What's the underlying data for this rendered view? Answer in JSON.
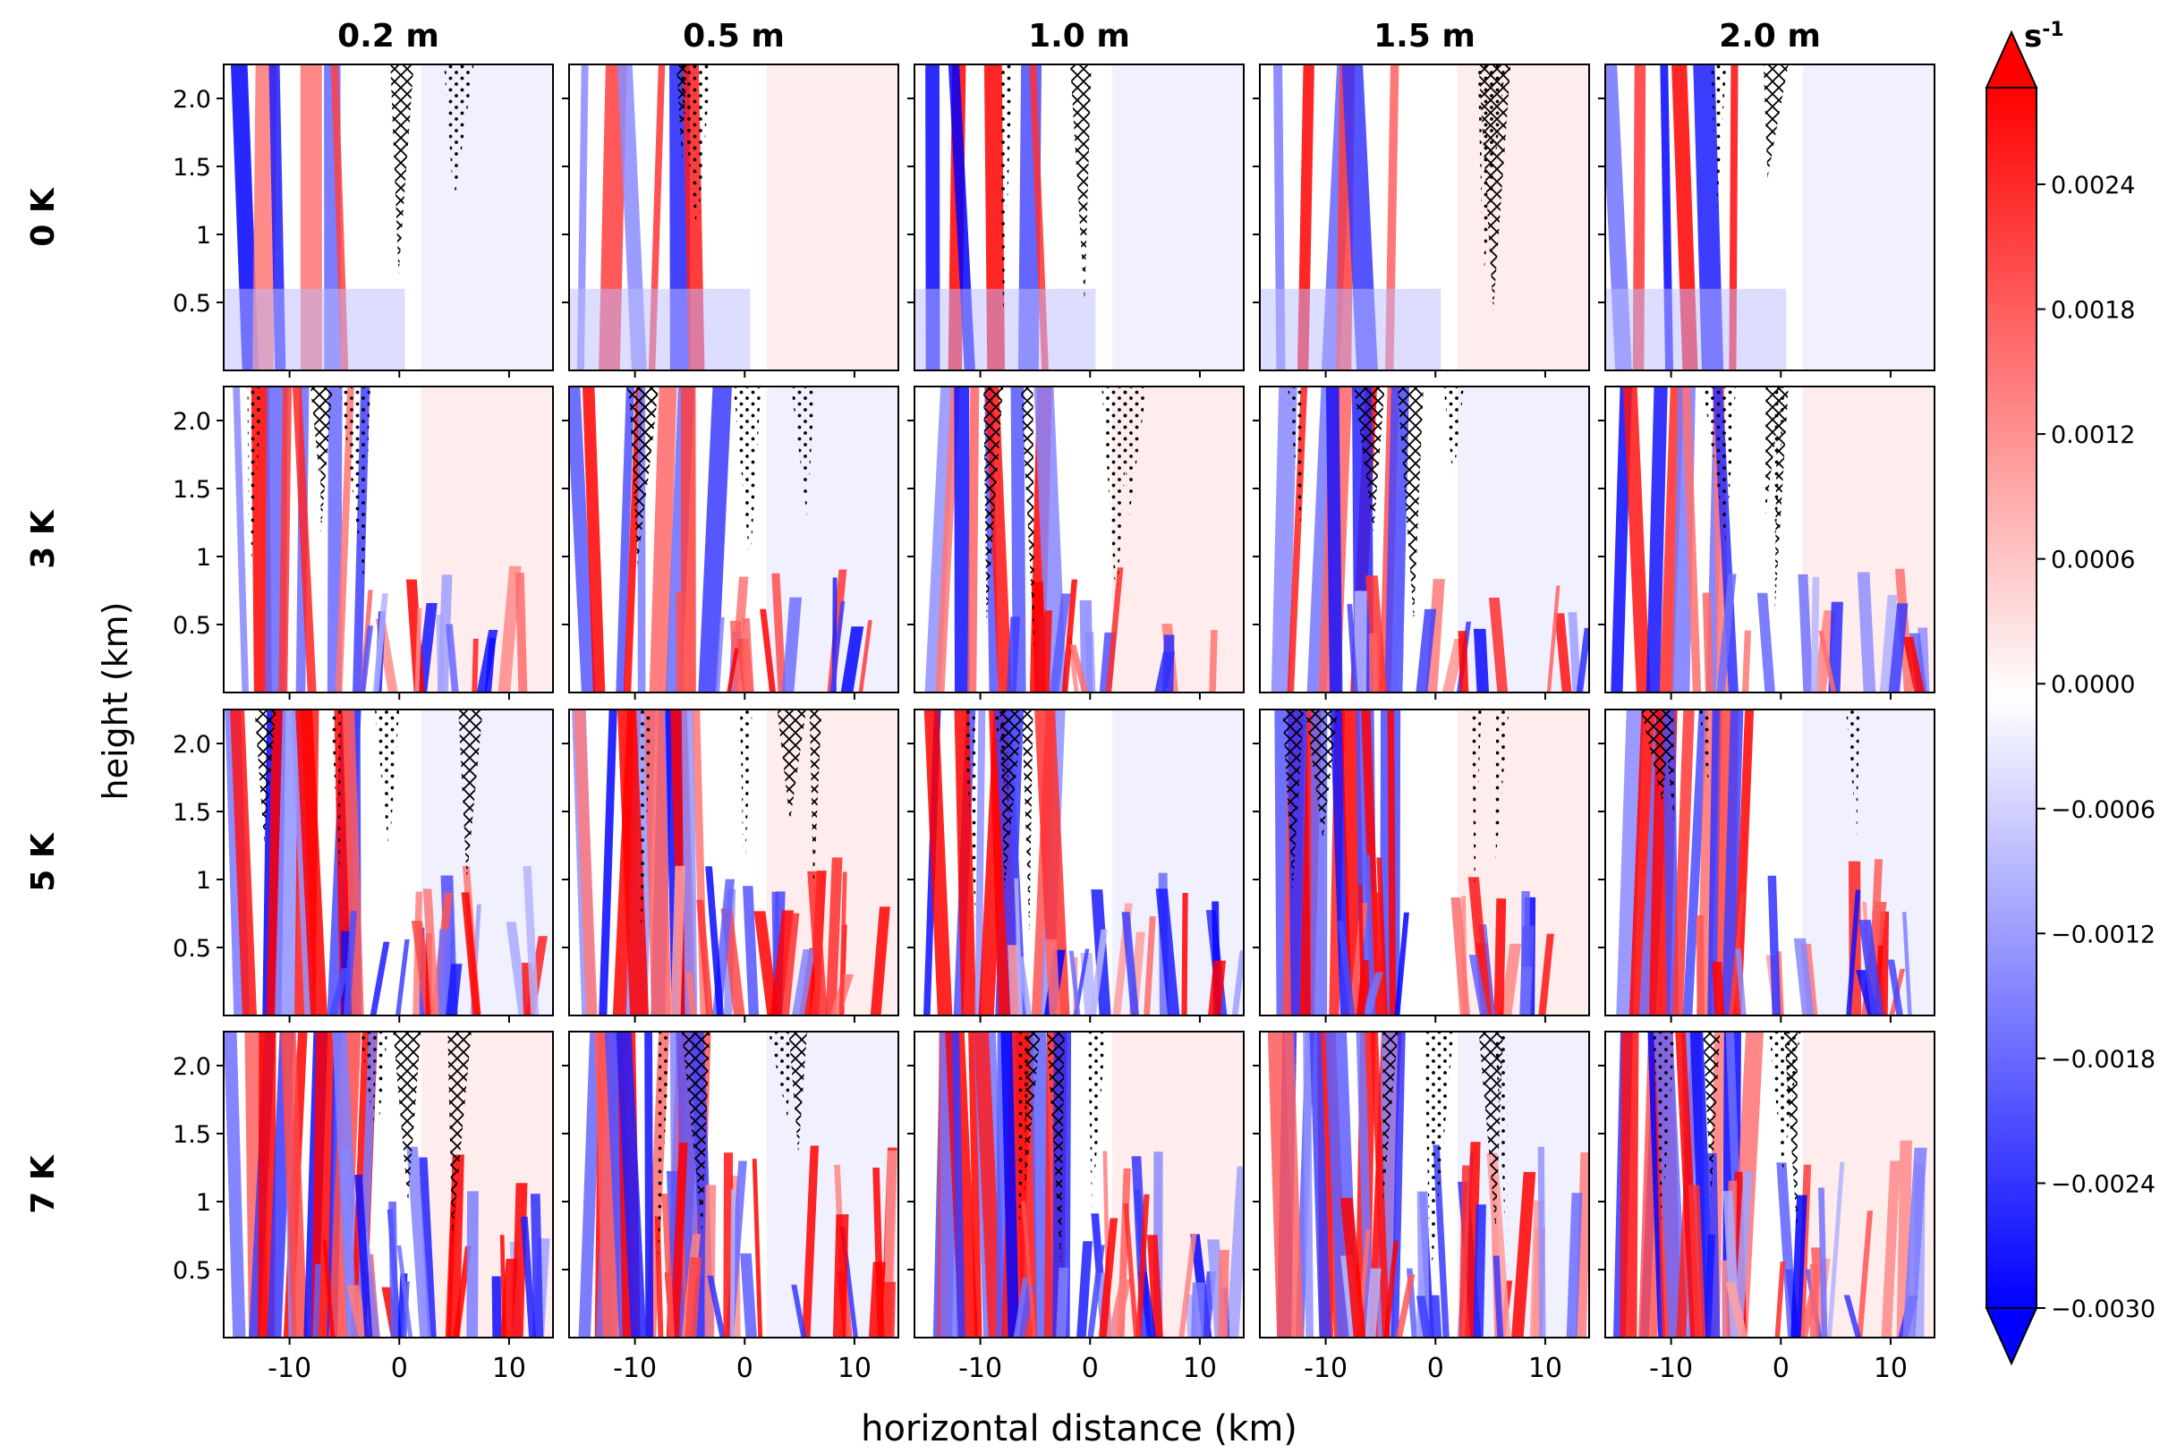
{
  "chart_data": {
    "type": "heatmap",
    "quantity_unit": "s-1",
    "xlabel": "horizontal distance (km)",
    "ylabel": "height (km)",
    "xlim": [
      -16,
      14
    ],
    "ylim": [
      0,
      2.25
    ],
    "x_ticks": [
      -10,
      0,
      10
    ],
    "x_tick_labels": [
      "-10",
      "0",
      "10"
    ],
    "y_ticks": [
      0.5,
      1,
      1.5,
      2.0
    ],
    "y_tick_labels": [
      "0.5",
      "1",
      "1.5",
      "2.0"
    ],
    "column_labels": [
      "0.2 m",
      "0.5 m",
      "1.0 m",
      "1.5 m",
      "2.0 m"
    ],
    "row_labels": [
      "0 K",
      "3 K",
      "5 K",
      "7 K"
    ],
    "hatching": [
      "cross-hatch",
      "stipple"
    ],
    "colorbar": {
      "label": "s-1",
      "min": -0.003,
      "max": 0.0024,
      "extend": "both",
      "colormap": "bwr",
      "ticks": [
        0.0024,
        0.0018,
        0.0012,
        0.0006,
        0.0,
        -0.0006,
        -0.0012,
        -0.0018,
        -0.0024,
        -0.003
      ],
      "tick_labels": [
        "0.0024",
        "0.0018",
        "0.0012",
        "0.0006",
        "0.0000",
        "−0.0006",
        "−0.0012",
        "−0.0018",
        "−0.0024",
        "−0.0030"
      ]
    },
    "colors": {
      "positive": "#ff0000",
      "neutral": "#ffffff",
      "negative": "#0000ff",
      "hatch": "#000000"
    }
  }
}
